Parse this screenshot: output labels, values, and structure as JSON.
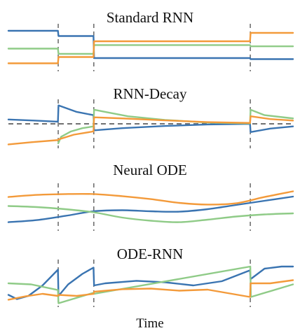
{
  "chart_data": [
    {
      "type": "line",
      "title": "Standard RNN",
      "xlabel": "",
      "ylabel": "",
      "xlim": [
        0,
        10
      ],
      "ylim": [
        -1,
        1
      ],
      "observation_times": [
        1.75,
        3.0,
        8.5
      ],
      "reference_line": null,
      "series": [
        {
          "color": "#3A74B1",
          "x": [
            0,
            1.74,
            1.76,
            2.99,
            3.01,
            8.49,
            8.51,
            10
          ],
          "values": [
            0.8,
            0.8,
            0.55,
            0.55,
            -0.5,
            -0.5,
            -0.55,
            -0.55
          ]
        },
        {
          "color": "#8FCB87",
          "x": [
            0,
            1.74,
            1.76,
            2.99,
            3.01,
            8.49,
            8.51,
            10
          ],
          "values": [
            -0.05,
            -0.05,
            -0.3,
            -0.3,
            0.12,
            0.12,
            0.06,
            0.06
          ]
        },
        {
          "color": "#F39A3A",
          "x": [
            0,
            1.74,
            1.76,
            2.99,
            3.01,
            8.49,
            8.51,
            10
          ],
          "values": [
            -0.75,
            -0.75,
            -0.45,
            -0.45,
            0.3,
            0.3,
            0.7,
            0.7
          ]
        }
      ]
    },
    {
      "type": "line",
      "title": "RNN-Decay",
      "xlabel": "",
      "ylabel": "",
      "xlim": [
        0,
        10
      ],
      "ylim": [
        -1,
        1
      ],
      "observation_times": [
        1.75,
        3.0,
        8.5
      ],
      "reference_line": 0,
      "series": [
        {
          "color": "#3A74B1",
          "x": [
            0,
            0.9,
            1.74,
            1.76,
            2.4,
            2.99,
            3.01,
            4,
            5.5,
            7,
            8.49,
            8.51,
            9.2,
            10
          ],
          "values": [
            0.2,
            0.15,
            0.1,
            0.85,
            0.55,
            0.4,
            -0.3,
            -0.2,
            -0.1,
            -0.03,
            0.0,
            -0.38,
            -0.22,
            -0.12
          ]
        },
        {
          "color": "#8FCB87",
          "x": [
            1.75,
            1.85,
            2.2,
            2.6,
            2.99,
            3.01,
            3.4,
            4.2,
            5.5,
            7,
            8.49,
            8.51,
            9.0,
            10
          ],
          "values": [
            -0.9,
            -0.6,
            -0.35,
            -0.2,
            -0.12,
            0.65,
            0.55,
            0.35,
            0.18,
            0.06,
            0.02,
            0.65,
            0.4,
            0.25
          ]
        },
        {
          "color": "#F39A3A",
          "x": [
            0,
            0.8,
            1.74,
            1.76,
            2.3,
            2.99,
            3.01,
            4,
            5.5,
            7,
            8.49,
            8.51,
            9.2,
            10
          ],
          "values": [
            -0.95,
            -0.85,
            -0.75,
            -0.72,
            -0.5,
            -0.35,
            0.3,
            0.25,
            0.16,
            0.08,
            0.04,
            0.35,
            0.22,
            0.15
          ]
        }
      ]
    },
    {
      "type": "line",
      "title": "Neural ODE",
      "xlabel": "",
      "ylabel": "",
      "xlim": [
        0,
        10
      ],
      "ylim": [
        -1,
        1
      ],
      "observation_times": [
        1.75,
        3.0,
        8.5
      ],
      "reference_line": null,
      "series": [
        {
          "color": "#3A74B1",
          "x": [
            0,
            1,
            2,
            3,
            4,
            5,
            6,
            7,
            8,
            9,
            10
          ],
          "values": [
            -0.72,
            -0.62,
            -0.42,
            -0.2,
            -0.15,
            -0.2,
            -0.22,
            -0.1,
            0.1,
            0.3,
            0.5
          ]
        },
        {
          "color": "#8FCB87",
          "x": [
            0,
            1,
            2,
            3,
            4,
            5,
            6,
            7,
            8,
            9,
            10
          ],
          "values": [
            0.05,
            0.0,
            -0.1,
            -0.25,
            -0.5,
            -0.65,
            -0.72,
            -0.6,
            -0.45,
            -0.35,
            -0.3
          ]
        },
        {
          "color": "#F39A3A",
          "x": [
            0,
            1,
            2,
            3,
            4,
            5,
            6,
            7,
            8,
            9,
            10
          ],
          "values": [
            0.48,
            0.58,
            0.62,
            0.62,
            0.52,
            0.38,
            0.2,
            0.12,
            0.18,
            0.48,
            0.75
          ]
        }
      ]
    },
    {
      "type": "line",
      "title": "ODE-RNN",
      "xlabel": "Time",
      "ylabel": "",
      "xlim": [
        0,
        10
      ],
      "ylim": [
        -1,
        1
      ],
      "observation_times": [
        1.75,
        3.0,
        8.5
      ],
      "reference_line": null,
      "series": [
        {
          "color": "#3A74B1",
          "x": [
            0,
            0.3,
            0.7,
            1.2,
            1.74,
            1.76,
            2.1,
            2.6,
            2.99,
            3.01,
            3.4,
            4.5,
            5.5,
            6.5,
            7.5,
            8.49,
            8.51,
            9.0,
            9.6,
            10
          ],
          "values": [
            -0.55,
            -0.75,
            -0.6,
            -0.1,
            0.65,
            -0.6,
            -0.05,
            0.45,
            0.75,
            -0.1,
            0.0,
            0.12,
            0.05,
            -0.1,
            0.1,
            0.62,
            0.2,
            0.7,
            0.8,
            0.8
          ]
        },
        {
          "color": "#8FCB87",
          "x": [
            0,
            0.8,
            1.74,
            1.76,
            2.99,
            3.01,
            8.5,
            8.52,
            10
          ],
          "values": [
            0.0,
            -0.05,
            -0.32,
            -0.95,
            -0.45,
            -0.5,
            0.8,
            -0.65,
            -0.05
          ]
        },
        {
          "color": "#F39A3A",
          "x": [
            0,
            0.6,
            1.2,
            1.74,
            1.76,
            2.4,
            2.99,
            3.01,
            4,
            5,
            6,
            7,
            8.49,
            8.51,
            9.2,
            10
          ],
          "values": [
            -0.78,
            -0.62,
            -0.5,
            -0.6,
            -0.55,
            -0.6,
            -0.5,
            -0.4,
            -0.28,
            -0.25,
            -0.35,
            -0.3,
            -0.65,
            0.0,
            0.0,
            0.15
          ]
        }
      ]
    }
  ]
}
